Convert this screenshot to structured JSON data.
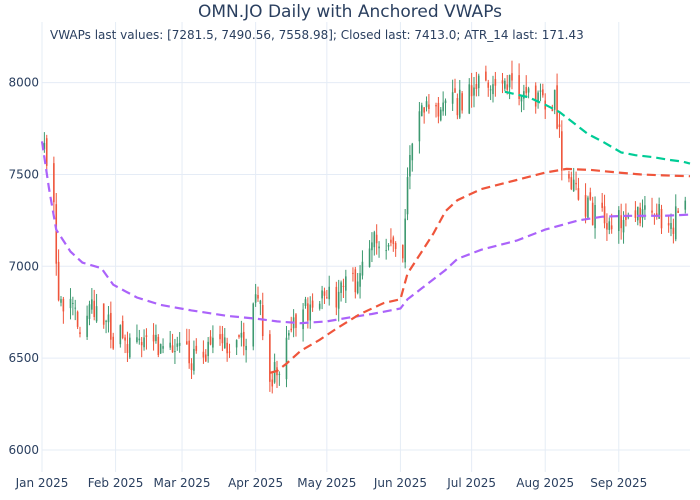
{
  "chart_data": {
    "type": "candlestick",
    "title": "OMN.JO Daily with Anchored VWAPs",
    "annotation": "VWAPs last values: [7281.5, 7490.56, 7558.98]; Closed last: 7413.0; ATR_14 last: 171.43",
    "xlabel": "",
    "ylabel": "",
    "x_range": [
      "2025-01-01",
      "2025-10-01"
    ],
    "ylim": [
      5880,
      8330
    ],
    "y_ticks": [
      6000,
      6500,
      7000,
      7500,
      8000
    ],
    "x_ticks": [
      {
        "date": "2025-01-01",
        "label": "Jan 2025"
      },
      {
        "date": "2025-02-01",
        "label": "Feb 2025"
      },
      {
        "date": "2025-03-01",
        "label": "Mar 2025"
      },
      {
        "date": "2025-04-01",
        "label": "Apr 2025"
      },
      {
        "date": "2025-05-01",
        "label": "May 2025"
      },
      {
        "date": "2025-06-01",
        "label": "Jun 2025"
      },
      {
        "date": "2025-07-01",
        "label": "Jul 2025"
      },
      {
        "date": "2025-08-01",
        "label": "Aug 2025"
      },
      {
        "date": "2025-09-01",
        "label": "Sep 2025"
      }
    ],
    "grid": true,
    "colors": {
      "up": "#3d9970",
      "down": "#ef553b",
      "vwap_1": "#ab63fa",
      "vwap_2": "#ef553b",
      "vwap_3": "#00cc96",
      "grid": "#e5ecf6"
    },
    "candle_anchors": [
      [
        "2025-01-02",
        7660
      ],
      [
        "2025-01-06",
        7300
      ],
      [
        "2025-01-08",
        6850
      ],
      [
        "2025-01-13",
        6750
      ],
      [
        "2025-01-17",
        6700
      ],
      [
        "2025-01-22",
        6800
      ],
      [
        "2025-01-27",
        6720
      ],
      [
        "2025-01-31",
        6620
      ],
      [
        "2025-02-05",
        6600
      ],
      [
        "2025-02-10",
        6600
      ],
      [
        "2025-02-14",
        6560
      ],
      [
        "2025-02-19",
        6580
      ],
      [
        "2025-02-24",
        6560
      ],
      [
        "2025-02-28",
        6550
      ],
      [
        "2025-03-05",
        6500
      ],
      [
        "2025-03-10",
        6560
      ],
      [
        "2025-03-14",
        6540
      ],
      [
        "2025-03-19",
        6580
      ],
      [
        "2025-03-24",
        6560
      ],
      [
        "2025-03-28",
        6620
      ],
      [
        "2025-04-02",
        6850
      ],
      [
        "2025-04-07",
        6400
      ],
      [
        "2025-04-10",
        6420
      ],
      [
        "2025-04-15",
        6650
      ],
      [
        "2025-04-22",
        6750
      ],
      [
        "2025-04-28",
        6820
      ],
      [
        "2025-05-05",
        6850
      ],
      [
        "2025-05-12",
        6900
      ],
      [
        "2025-05-19",
        7100
      ],
      [
        "2025-05-23",
        7150
      ],
      [
        "2025-05-28",
        7150
      ],
      [
        "2025-06-02",
        7100
      ],
      [
        "2025-06-05",
        7650
      ],
      [
        "2025-06-10",
        7850
      ],
      [
        "2025-06-16",
        7850
      ],
      [
        "2025-06-20",
        7900
      ],
      [
        "2025-06-25",
        7880
      ],
      [
        "2025-06-30",
        7950
      ],
      [
        "2025-07-04",
        8000
      ],
      [
        "2025-07-10",
        8000
      ],
      [
        "2025-07-15",
        7980
      ],
      [
        "2025-07-21",
        7950
      ],
      [
        "2025-07-25",
        7920
      ],
      [
        "2025-07-31",
        7900
      ],
      [
        "2025-08-05",
        7900
      ],
      [
        "2025-08-08",
        7580
      ],
      [
        "2025-08-13",
        7450
      ],
      [
        "2025-08-19",
        7300
      ],
      [
        "2025-08-25",
        7250
      ],
      [
        "2025-08-29",
        7230
      ],
      [
        "2025-09-03",
        7260
      ],
      [
        "2025-09-09",
        7280
      ],
      [
        "2025-09-15",
        7300
      ],
      [
        "2025-09-19",
        7270
      ],
      [
        "2025-09-24",
        7250
      ],
      [
        "2025-09-29",
        7400
      ]
    ],
    "series": [
      {
        "style": "dash",
        "points": [
          [
            "2025-01-01",
            7680
          ],
          [
            "2025-01-04",
            7420
          ],
          [
            "2025-01-07",
            7200
          ],
          [
            "2025-01-13",
            7080
          ],
          [
            "2025-01-18",
            7020
          ],
          [
            "2025-01-26",
            6990
          ],
          [
            "2025-01-31",
            6900
          ],
          [
            "2025-02-10",
            6830
          ],
          [
            "2025-02-20",
            6790
          ],
          [
            "2025-03-05",
            6760
          ],
          [
            "2025-03-20",
            6730
          ],
          [
            "2025-04-01",
            6715
          ],
          [
            "2025-04-10",
            6700
          ],
          [
            "2025-04-20",
            6690
          ],
          [
            "2025-05-01",
            6700
          ],
          [
            "2025-05-10",
            6720
          ],
          [
            "2025-05-20",
            6740
          ],
          [
            "2025-06-01",
            6770
          ],
          [
            "2025-06-04",
            6820
          ],
          [
            "2025-06-10",
            6880
          ],
          [
            "2025-06-20",
            6980
          ],
          [
            "2025-06-25",
            7040
          ],
          [
            "2025-07-05",
            7090
          ],
          [
            "2025-07-20",
            7140
          ],
          [
            "2025-08-01",
            7200
          ],
          [
            "2025-08-15",
            7250
          ],
          [
            "2025-08-25",
            7270
          ],
          [
            "2025-09-05",
            7275
          ],
          [
            "2025-09-20",
            7275
          ],
          [
            "2025-10-01",
            7281.5
          ]
        ]
      },
      {
        "style": "dash",
        "points": [
          [
            "2025-04-07",
            6420
          ],
          [
            "2025-04-10",
            6430
          ],
          [
            "2025-04-14",
            6470
          ],
          [
            "2025-04-20",
            6540
          ],
          [
            "2025-04-28",
            6600
          ],
          [
            "2025-05-05",
            6660
          ],
          [
            "2025-05-15",
            6740
          ],
          [
            "2025-05-25",
            6800
          ],
          [
            "2025-06-01",
            6820
          ],
          [
            "2025-06-04",
            6960
          ],
          [
            "2025-06-10",
            7080
          ],
          [
            "2025-06-15",
            7180
          ],
          [
            "2025-06-20",
            7300
          ],
          [
            "2025-06-25",
            7360
          ],
          [
            "2025-07-05",
            7420
          ],
          [
            "2025-07-20",
            7470
          ],
          [
            "2025-08-01",
            7510
          ],
          [
            "2025-08-10",
            7530
          ],
          [
            "2025-08-20",
            7525
          ],
          [
            "2025-09-01",
            7510
          ],
          [
            "2025-09-10",
            7500
          ],
          [
            "2025-09-20",
            7495
          ],
          [
            "2025-10-01",
            7490.56
          ]
        ]
      },
      {
        "style": "dash",
        "points": [
          [
            "2025-07-15",
            7950
          ],
          [
            "2025-07-25",
            7920
          ],
          [
            "2025-08-01",
            7880
          ],
          [
            "2025-08-07",
            7840
          ],
          [
            "2025-08-13",
            7780
          ],
          [
            "2025-08-19",
            7720
          ],
          [
            "2025-08-25",
            7680
          ],
          [
            "2025-08-29",
            7650
          ],
          [
            "2025-09-02",
            7620
          ],
          [
            "2025-09-08",
            7605
          ],
          [
            "2025-09-15",
            7595
          ],
          [
            "2025-09-22",
            7580
          ],
          [
            "2025-09-28",
            7570
          ],
          [
            "2025-10-01",
            7558.98
          ]
        ]
      }
    ]
  }
}
